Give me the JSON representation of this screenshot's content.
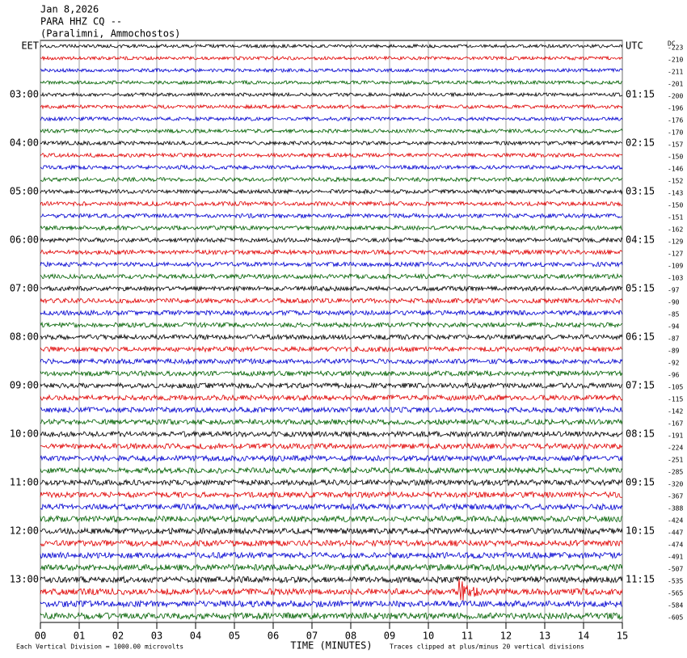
{
  "header": {
    "date": "Jan 8,2026",
    "station": "PARA HHZ CQ --",
    "location": "(Paralimni, Ammochostos)"
  },
  "chart_data": {
    "type": "helicorder",
    "dc_label": "DC",
    "left_labels": [
      "EET",
      null,
      null,
      null,
      "03:00",
      null,
      null,
      null,
      "04:00",
      null,
      null,
      null,
      "05:00",
      null,
      null,
      null,
      "06:00",
      null,
      null,
      null,
      "07:00",
      null,
      null,
      null,
      "08:00",
      null,
      null,
      null,
      "09:00",
      null,
      null,
      null,
      "10:00",
      null,
      null,
      null,
      "11:00",
      null,
      null,
      null,
      "12:00",
      null,
      null,
      null,
      "13:00",
      null,
      null,
      null
    ],
    "right_labels": [
      "UTC",
      null,
      null,
      null,
      "01:15",
      null,
      null,
      null,
      "02:15",
      null,
      null,
      null,
      "03:15",
      null,
      null,
      null,
      "04:15",
      null,
      null,
      null,
      "05:15",
      null,
      null,
      null,
      "06:15",
      null,
      null,
      null,
      "07:15",
      null,
      null,
      null,
      "08:15",
      null,
      null,
      null,
      "09:15",
      null,
      null,
      null,
      "10:15",
      null,
      null,
      null,
      "11:15",
      null,
      null,
      null
    ],
    "dc_values": [
      -223,
      -210,
      -211,
      -201,
      -200,
      -196,
      -176,
      -170,
      -157,
      -150,
      -146,
      -152,
      -143,
      -150,
      -151,
      -162,
      -129,
      -127,
      -109,
      -103,
      -97,
      -90,
      -85,
      -94,
      -87,
      -89,
      -92,
      -96,
      -105,
      -115,
      -142,
      -167,
      -191,
      -224,
      -251,
      -285,
      -320,
      -367,
      -388,
      -424,
      -447,
      -474,
      -491,
      -507,
      -535,
      -565,
      -584,
      -605
    ],
    "trace_colors": [
      "#000000",
      "#e00000",
      "#0000d0",
      "#006000"
    ],
    "xlim": [
      0,
      15
    ],
    "xticks": [
      {
        "value": 0,
        "label": "00"
      },
      {
        "value": 1,
        "label": "01"
      },
      {
        "value": 2,
        "label": "02"
      },
      {
        "value": 3,
        "label": "03"
      },
      {
        "value": 4,
        "label": "04"
      },
      {
        "value": 5,
        "label": "05"
      },
      {
        "value": 6,
        "label": "06"
      },
      {
        "value": 7,
        "label": "07"
      },
      {
        "value": 8,
        "label": "08"
      },
      {
        "value": 9,
        "label": "09"
      },
      {
        "value": 10,
        "label": "10"
      },
      {
        "value": 11,
        "label": "11"
      },
      {
        "value": 12,
        "label": "12"
      },
      {
        "value": 13,
        "label": "13"
      },
      {
        "value": 14,
        "label": "14"
      },
      {
        "value": 15,
        "label": "15"
      }
    ],
    "xlabel": "TIME (MINUTES)",
    "footnote_left": "Each Vertical Division = 1000.00 microvolts",
    "footnote_right": "Traces clipped at plus/minus 20 vertical divisions"
  }
}
